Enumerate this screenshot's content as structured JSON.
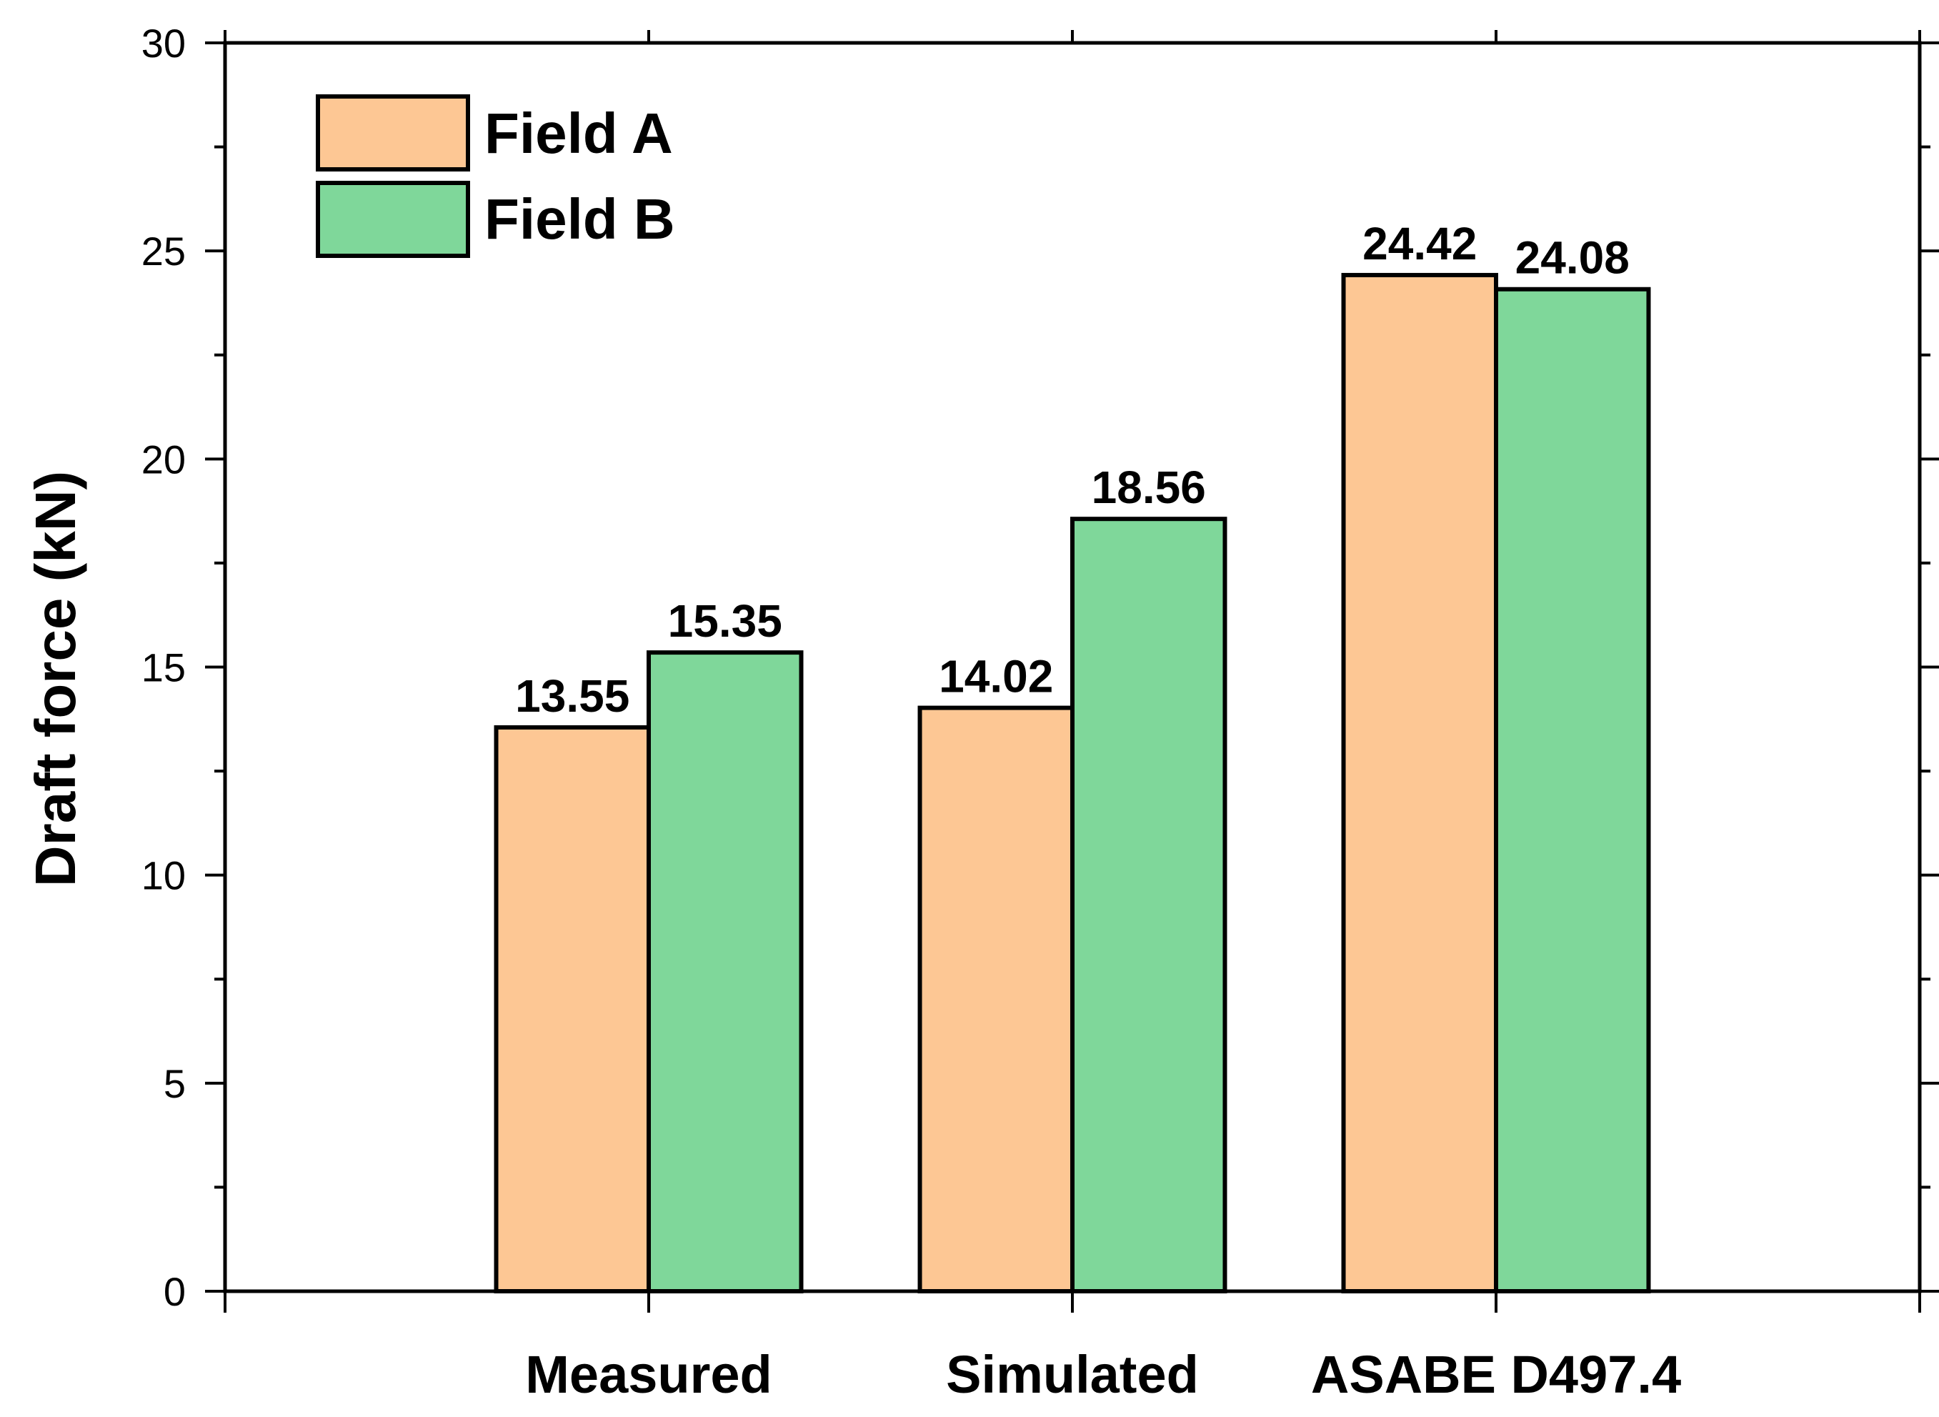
{
  "chart_data": {
    "type": "bar",
    "title": "",
    "xlabel": "",
    "ylabel": "Draft force (kN)",
    "ylim": [
      0,
      30
    ],
    "yticks": [
      "0",
      "5",
      "10",
      "15",
      "20",
      "25",
      "30"
    ],
    "categories": [
      "Measured",
      "Simulated",
      "ASABE D497.4"
    ],
    "series": [
      {
        "name": "Field A",
        "color": "#FDC794",
        "values": [
          13.55,
          14.02,
          24.42
        ],
        "labels": [
          "13.55",
          "14.02",
          "24.42"
        ]
      },
      {
        "name": "Field B",
        "color": "#7FD79A",
        "values": [
          15.35,
          18.56,
          24.08
        ],
        "labels": [
          "15.35",
          "18.56",
          "24.08"
        ]
      }
    ],
    "legend_position": "top-left",
    "grid": false
  }
}
